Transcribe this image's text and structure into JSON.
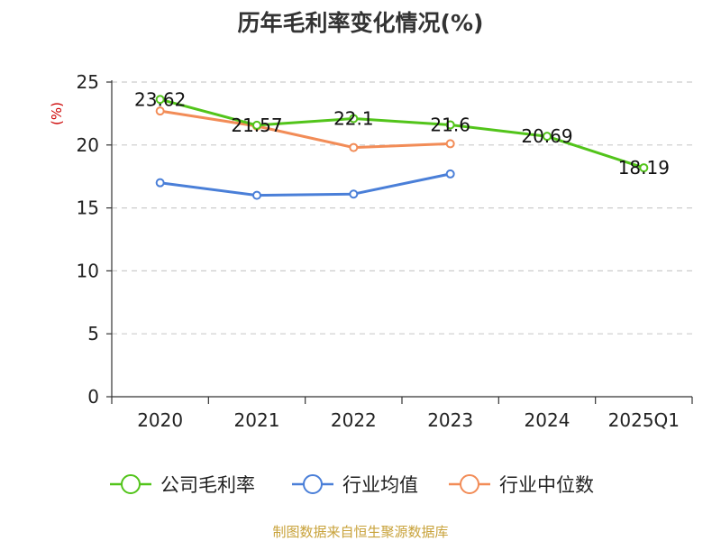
{
  "chart_data": {
    "type": "line",
    "title": "历年毛利率变化情况(%)",
    "ylabel": "(%)",
    "xlabel": "",
    "categories": [
      "2020",
      "2021",
      "2022",
      "2023",
      "2024",
      "2025Q1"
    ],
    "ylim": [
      0,
      25
    ],
    "yticks": [
      0,
      5,
      10,
      15,
      20,
      25
    ],
    "grid": true,
    "legend_position": "bottom",
    "series": [
      {
        "name": "公司毛利率",
        "color": "#52c41a",
        "values": [
          23.62,
          21.57,
          22.1,
          21.6,
          20.69,
          18.19
        ],
        "labels": [
          "23.62",
          "21.57",
          "22.1",
          "21.6",
          "20.69",
          "18.19"
        ],
        "show_labels": true
      },
      {
        "name": "行业均值",
        "color": "#4a7fd8",
        "values": [
          17.0,
          16.0,
          16.1,
          17.7,
          null,
          null
        ],
        "show_labels": false
      },
      {
        "name": "行业中位数",
        "color": "#f28c57",
        "values": [
          22.7,
          21.5,
          19.8,
          20.1,
          null,
          null
        ],
        "show_labels": false
      }
    ],
    "source": "制图数据来自恒生聚源数据库"
  },
  "colors": {
    "title": "#333333",
    "axis": "#333333",
    "grid": "#cccccc",
    "y_unit": "#cc0000",
    "source": "#c8a23a"
  }
}
